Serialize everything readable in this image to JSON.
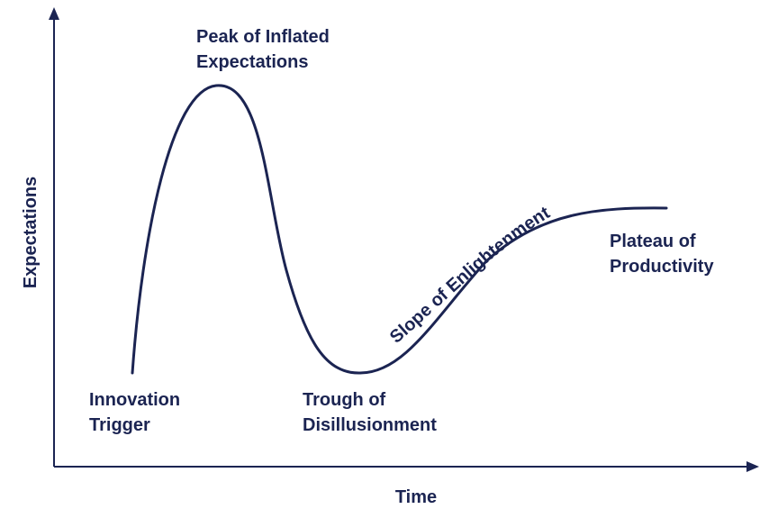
{
  "axes": {
    "x_label": "Time",
    "y_label": "Expectations"
  },
  "phases": {
    "innovation_trigger": [
      "Innovation",
      "Trigger"
    ],
    "peak": [
      "Peak of Inflated",
      "Expectations"
    ],
    "trough": [
      "Trough of",
      "Disillusionment"
    ],
    "slope": "Slope of Enlightenment",
    "plateau": [
      "Plateau of",
      "Productivity"
    ]
  },
  "colors": {
    "ink": "#1b2452",
    "background": "#ffffff"
  }
}
